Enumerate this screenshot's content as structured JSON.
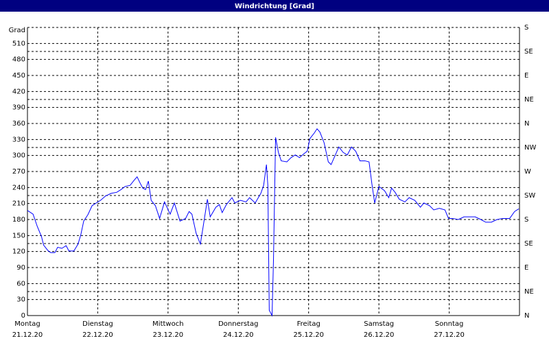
{
  "chart_data": {
    "type": "line",
    "title": "Windrichtung [Grad]",
    "ylabel": "Grad",
    "xlim": [
      0,
      7
    ],
    "xticks": [
      {
        "value": 0,
        "label": "Montag"
      },
      {
        "value": 1,
        "label": "Dienstag"
      },
      {
        "value": 2,
        "label": "Mittwoch"
      },
      {
        "value": 3,
        "label": "Donnerstag"
      },
      {
        "value": 4,
        "label": "Freitag"
      },
      {
        "value": 5,
        "label": "Samstag"
      },
      {
        "value": 6,
        "label": "Sonntag"
      }
    ],
    "xtick_dates": [
      "21.12.20",
      "22.12.20",
      "23.12.20",
      "24.12.20",
      "25.12.20",
      "26.12.20",
      "27.12.20"
    ],
    "ylim": [
      0,
      540
    ],
    "yticks": [
      0,
      30,
      60,
      90,
      120,
      150,
      180,
      210,
      240,
      270,
      300,
      330,
      360,
      390,
      420,
      450,
      480,
      510
    ],
    "y2lim": [
      0,
      540
    ],
    "y2ticks": [
      {
        "value": 0,
        "label": "N"
      },
      {
        "value": 45,
        "label": "NE"
      },
      {
        "value": 90,
        "label": "E"
      },
      {
        "value": 135,
        "label": "SE"
      },
      {
        "value": 180,
        "label": "S"
      },
      {
        "value": 225,
        "label": "SW"
      },
      {
        "value": 270,
        "label": "W"
      },
      {
        "value": 315,
        "label": "NW"
      },
      {
        "value": 360,
        "label": "N"
      },
      {
        "value": 405,
        "label": "NE"
      },
      {
        "value": 450,
        "label": "E"
      },
      {
        "value": 495,
        "label": "SE"
      },
      {
        "value": 540,
        "label": "S"
      }
    ],
    "grid": true,
    "color": "#0000ff",
    "x": [
      0,
      0.08,
      0.14,
      0.2,
      0.23,
      0.29,
      0.33,
      0.39,
      0.43,
      0.49,
      0.55,
      0.59,
      0.66,
      0.72,
      0.76,
      0.8,
      0.86,
      0.92,
      0.98,
      1.04,
      1.11,
      1.19,
      1.27,
      1.33,
      1.39,
      1.46,
      1.52,
      1.56,
      1.6,
      1.64,
      1.68,
      1.72,
      1.76,
      1.82,
      1.88,
      1.95,
      2.03,
      2.09,
      2.17,
      2.25,
      2.3,
      2.34,
      2.4,
      2.46,
      2.5,
      2.56,
      2.6,
      2.68,
      2.73,
      2.77,
      2.83,
      2.91,
      2.95,
      3.03,
      3.11,
      3.16,
      3.24,
      3.32,
      3.36,
      3.4,
      3.42,
      3.44,
      3.48,
      3.5,
      3.53,
      3.57,
      3.61,
      3.69,
      3.75,
      3.81,
      3.87,
      3.93,
      3.98,
      4.02,
      4.08,
      4.12,
      4.16,
      4.22,
      4.28,
      4.32,
      4.38,
      4.43,
      4.49,
      4.55,
      4.61,
      4.67,
      4.73,
      4.8,
      4.86,
      4.9,
      4.94,
      5,
      5.08,
      5.14,
      5.18,
      5.23,
      5.29,
      5.37,
      5.43,
      5.51,
      5.59,
      5.64,
      5.72,
      5.78,
      5.86,
      5.94,
      5.99,
      6.05,
      6.13,
      6.21,
      6.29,
      6.37,
      6.45,
      6.52,
      6.6,
      6.68,
      6.76,
      6.86,
      6.93,
      6.99
    ],
    "values": [
      197,
      190,
      167,
      148,
      132,
      122,
      118,
      118,
      128,
      126,
      131,
      121,
      121,
      134,
      152,
      177,
      189,
      206,
      211,
      216,
      224,
      229,
      231,
      236,
      242,
      244,
      254,
      260,
      249,
      239,
      236,
      252,
      216,
      206,
      182,
      213,
      190,
      211,
      177,
      182,
      195,
      190,
      154,
      134,
      167,
      218,
      185,
      203,
      208,
      193,
      208,
      221,
      211,
      216,
      213,
      221,
      211,
      229,
      244,
      283,
      244,
      10,
      0,
      103,
      334,
      306,
      290,
      288,
      296,
      301,
      296,
      303,
      308,
      332,
      342,
      350,
      344,
      324,
      288,
      283,
      301,
      316,
      306,
      301,
      316,
      308,
      290,
      290,
      288,
      247,
      211,
      242,
      234,
      221,
      239,
      231,
      218,
      213,
      221,
      216,
      203,
      211,
      206,
      198,
      201,
      198,
      182,
      182,
      180,
      185,
      185,
      185,
      180,
      175,
      175,
      180,
      182,
      182,
      195,
      200
    ]
  }
}
